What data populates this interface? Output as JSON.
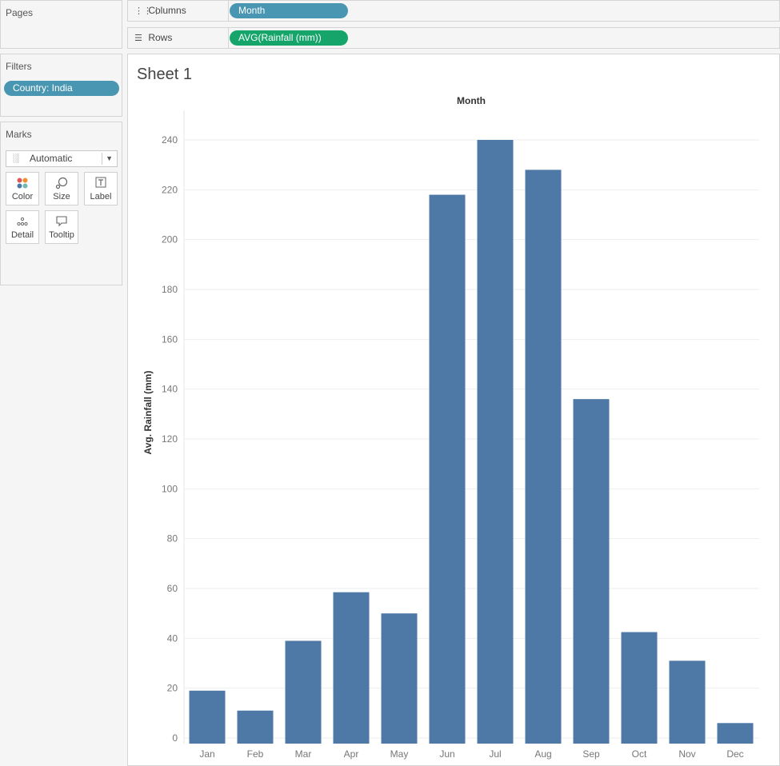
{
  "panels": {
    "pages_title": "Pages",
    "filters_title": "Filters",
    "filter_pill": "Country: India",
    "marks_title": "Marks",
    "mark_type": "Automatic",
    "mark_buttons": [
      {
        "label": "Color",
        "icon": "color-icon"
      },
      {
        "label": "Size",
        "icon": "size-icon"
      },
      {
        "label": "Label",
        "icon": "label-icon"
      },
      {
        "label": "Detail",
        "icon": "detail-icon"
      },
      {
        "label": "Tooltip",
        "icon": "tooltip-icon"
      }
    ]
  },
  "shelves": {
    "columns_label": "Columns",
    "columns_pill": "Month",
    "rows_label": "Rows",
    "rows_pill": "AVG(Rainfall (mm))"
  },
  "colors": {
    "bar": "#4e79a7",
    "pill_blue": "#4996b2",
    "pill_green": "#15a56a"
  },
  "sheet_title": "Sheet 1",
  "chart_data": {
    "type": "bar",
    "title": "Month",
    "xlabel": "",
    "ylabel": "Avg. Rainfall (mm)",
    "categories": [
      "Jan",
      "Feb",
      "Mar",
      "Apr",
      "May",
      "Jun",
      "Jul",
      "Aug",
      "Sep",
      "Oct",
      "Nov",
      "Dec"
    ],
    "values": [
      19,
      11,
      39,
      58.5,
      50,
      218,
      240,
      228,
      136,
      42.5,
      31,
      6
    ],
    "ylim": [
      0,
      250
    ],
    "yticks": [
      0,
      20,
      40,
      60,
      80,
      100,
      120,
      140,
      160,
      180,
      200,
      220,
      240
    ],
    "grid": true,
    "legend": "none"
  }
}
